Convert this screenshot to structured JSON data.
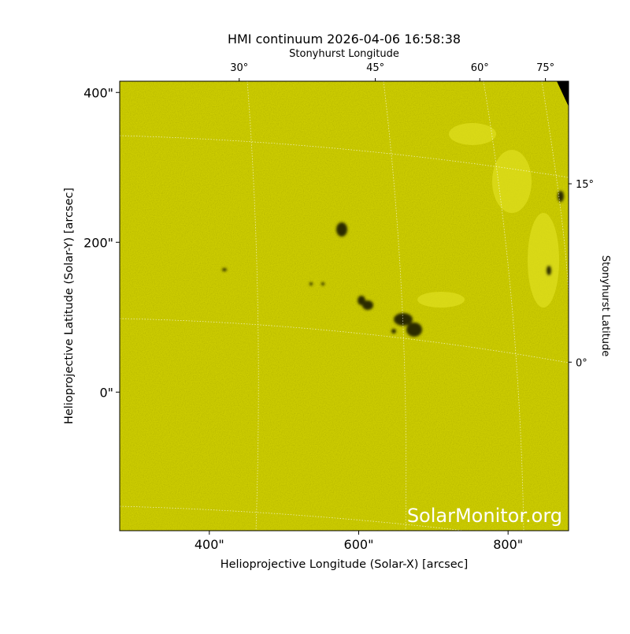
{
  "chart_data": {
    "type": "image",
    "title": "HMI continuum 2026-04-06 16:58:38",
    "xlabel": "Helioprojective Longitude (Solar-X) [arcsec]",
    "ylabel": "Helioprojective Latitude (Solar-Y) [arcsec]",
    "top_label": "Stonyhurst Longitude",
    "right_label": "Stonyhurst Latitude",
    "xlim": [
      280,
      881
    ],
    "ylim": [
      -185,
      415
    ],
    "xticks": [
      {
        "value": 400,
        "label": "400\""
      },
      {
        "value": 600,
        "label": "600\""
      },
      {
        "value": 800,
        "label": "800\""
      }
    ],
    "yticks": [
      {
        "value": 0,
        "label": "0\""
      },
      {
        "value": 200,
        "label": "200\""
      },
      {
        "value": 400,
        "label": "400\""
      }
    ],
    "top_ticks": [
      {
        "value": 30,
        "label": "30°"
      },
      {
        "value": 45,
        "label": "45°"
      },
      {
        "value": 60,
        "label": "60°"
      },
      {
        "value": 75,
        "label": "75°"
      }
    ],
    "right_ticks": [
      {
        "value": 0,
        "label": "0°"
      },
      {
        "value": 15,
        "label": "15°"
      }
    ],
    "watermark": "SolarMonitor.org"
  }
}
